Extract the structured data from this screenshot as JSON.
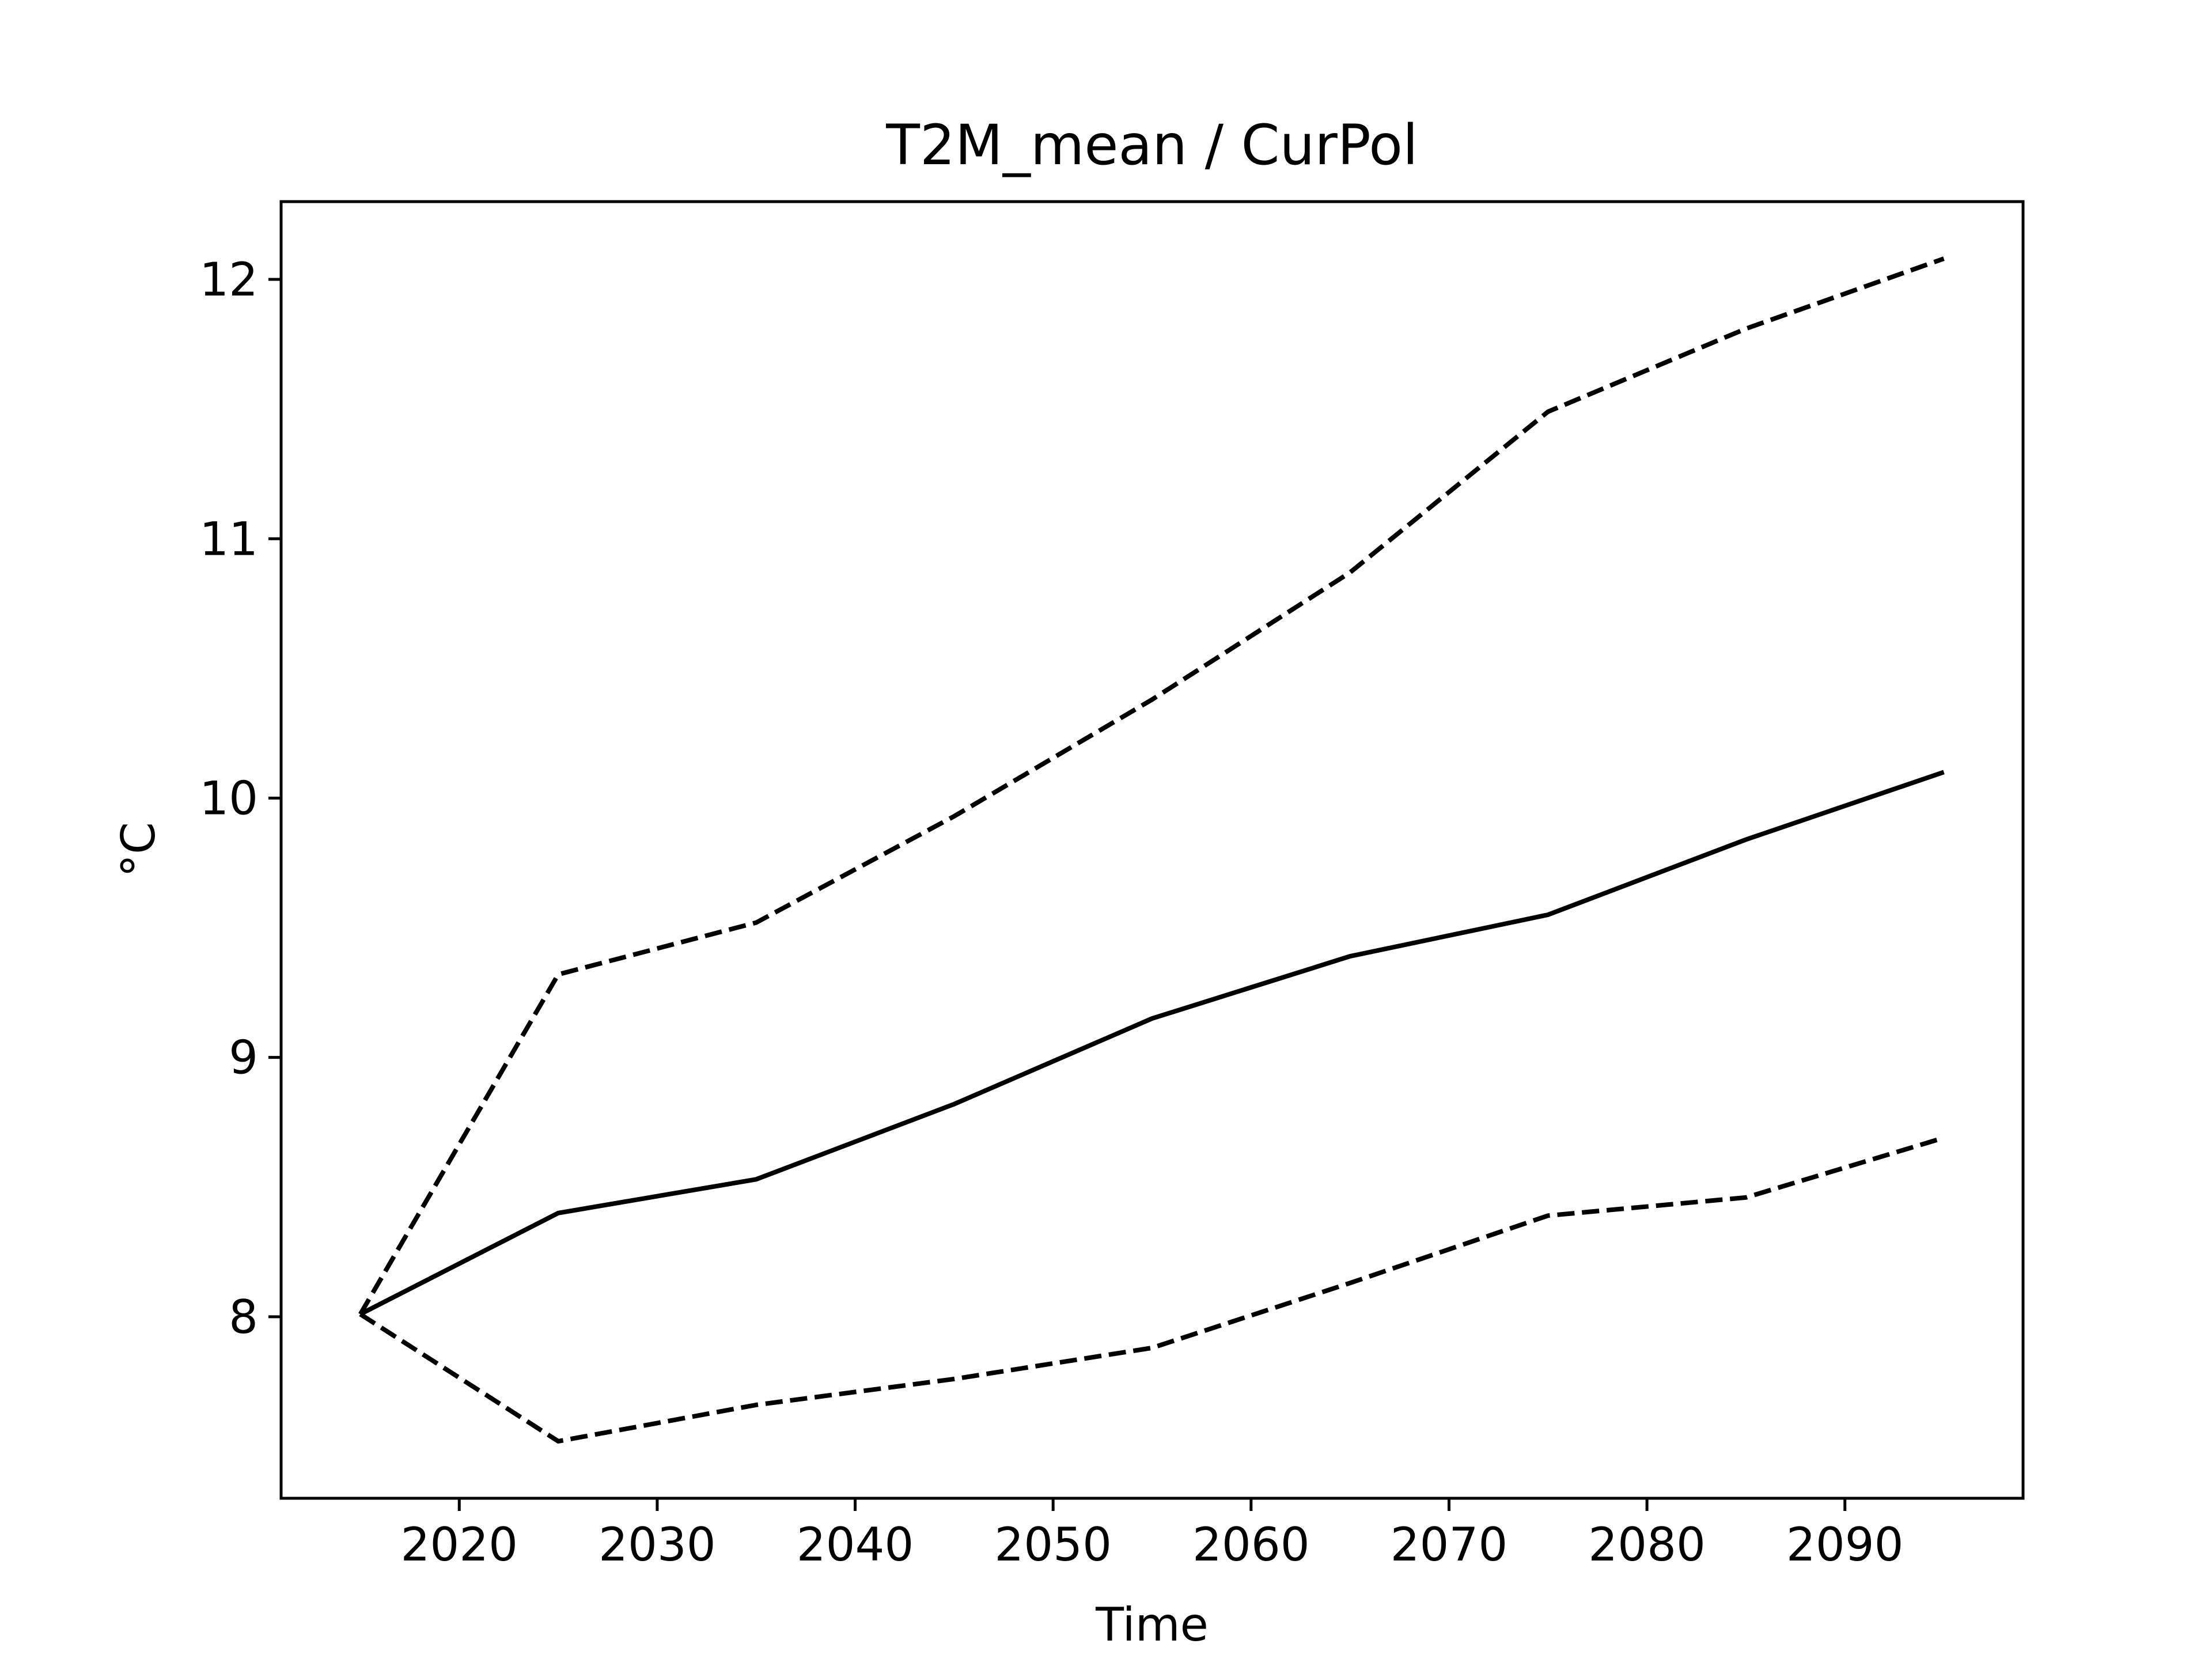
{
  "chart_data": {
    "type": "line",
    "title": "T2M_mean / CurPol",
    "xlabel": "Time",
    "ylabel": "°C",
    "xlim": [
      2011,
      2099
    ],
    "ylim": [
      7.3,
      12.3
    ],
    "x_ticks": [
      2020,
      2030,
      2040,
      2050,
      2060,
      2070,
      2080,
      2090
    ],
    "y_ticks": [
      8,
      9,
      10,
      11,
      12
    ],
    "grid": false,
    "legend": "none",
    "x": [
      2015,
      2025,
      2035,
      2045,
      2055,
      2065,
      2075,
      2085,
      2095
    ],
    "series": [
      {
        "style": "solid",
        "color": "#000000",
        "values": [
          8.01,
          8.4,
          8.53,
          8.82,
          9.15,
          9.39,
          9.55,
          9.84,
          10.1
        ]
      },
      {
        "style": "dashed",
        "color": "#000000",
        "values": [
          8.01,
          9.32,
          9.52,
          9.93,
          10.38,
          10.87,
          11.49,
          11.81,
          12.08
        ]
      },
      {
        "style": "dashed",
        "color": "#000000",
        "values": [
          8.01,
          7.52,
          7.66,
          7.76,
          7.88,
          8.13,
          8.39,
          8.46,
          8.69
        ]
      }
    ]
  }
}
